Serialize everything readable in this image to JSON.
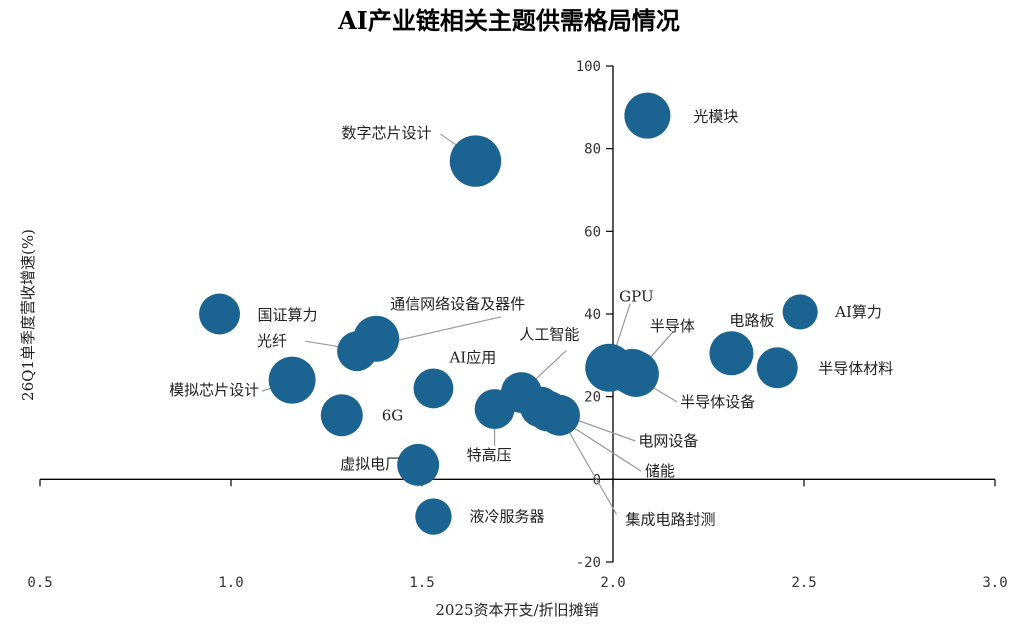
{
  "chart_data": {
    "type": "scatter",
    "title": "AI产业链相关主题供需格局情况",
    "xlabel": "2025资本开支/折旧摊销",
    "ylabel": "26Q1单季度营收增速(%)",
    "xlim": [
      0.5,
      3.0
    ],
    "ylim": [
      -20,
      100
    ],
    "x_ticks": [
      "0.5",
      "1.0",
      "1.5",
      "2.0",
      "2.5",
      "3.0"
    ],
    "y_ticks": [
      "-20",
      "0",
      "20",
      "40",
      "60",
      "80",
      "100"
    ],
    "bubble_color": "#1B6491",
    "points": [
      {
        "label": "光模块",
        "x": 2.09,
        "y": 88,
        "size": 1.2
      },
      {
        "label": "数字芯片设计",
        "x": 1.64,
        "y": 77,
        "size": 1.5
      },
      {
        "label": "国证算力",
        "x": 0.97,
        "y": 40,
        "size": 0.95
      },
      {
        "label": "通信网络设备及器件",
        "x": 1.38,
        "y": 34,
        "size": 1.2
      },
      {
        "label": "光纤",
        "x": 1.33,
        "y": 31,
        "size": 0.9
      },
      {
        "label": "模拟芯片设计",
        "x": 1.16,
        "y": 24,
        "size": 1.25
      },
      {
        "label": "AI应用",
        "x": 1.53,
        "y": 22,
        "size": 0.9
      },
      {
        "label": "6G",
        "x": 1.29,
        "y": 15.5,
        "size": 1.0
      },
      {
        "label": "虚拟电厂",
        "x": 1.49,
        "y": 3.5,
        "size": 1.0
      },
      {
        "label": "液冷服务器",
        "x": 1.53,
        "y": -9,
        "size": 0.75
      },
      {
        "label": "特高压",
        "x": 1.69,
        "y": 17,
        "size": 0.9
      },
      {
        "label": "人工智能",
        "x": 1.76,
        "y": 21,
        "size": 0.95
      },
      {
        "label": "电网设备",
        "x": 1.81,
        "y": 17.5,
        "size": 0.95
      },
      {
        "label": "储能",
        "x": 1.83,
        "y": 16.5,
        "size": 0.95
      },
      {
        "label": "集成电路封测",
        "x": 1.86,
        "y": 15.5,
        "size": 0.95
      },
      {
        "label": "GPU",
        "x": 1.99,
        "y": 27,
        "size": 1.3
      },
      {
        "label": "半导体设备",
        "x": 2.05,
        "y": 26,
        "size": 1.2
      },
      {
        "label": "半导体",
        "x": 2.06,
        "y": 25.5,
        "size": 1.2
      },
      {
        "label": "电路板",
        "x": 2.31,
        "y": 30.5,
        "size": 1.1
      },
      {
        "label": "AI算力",
        "x": 2.49,
        "y": 40.5,
        "size": 0.7
      },
      {
        "label": "半导体材料",
        "x": 2.43,
        "y": 27,
        "size": 0.95
      }
    ]
  }
}
